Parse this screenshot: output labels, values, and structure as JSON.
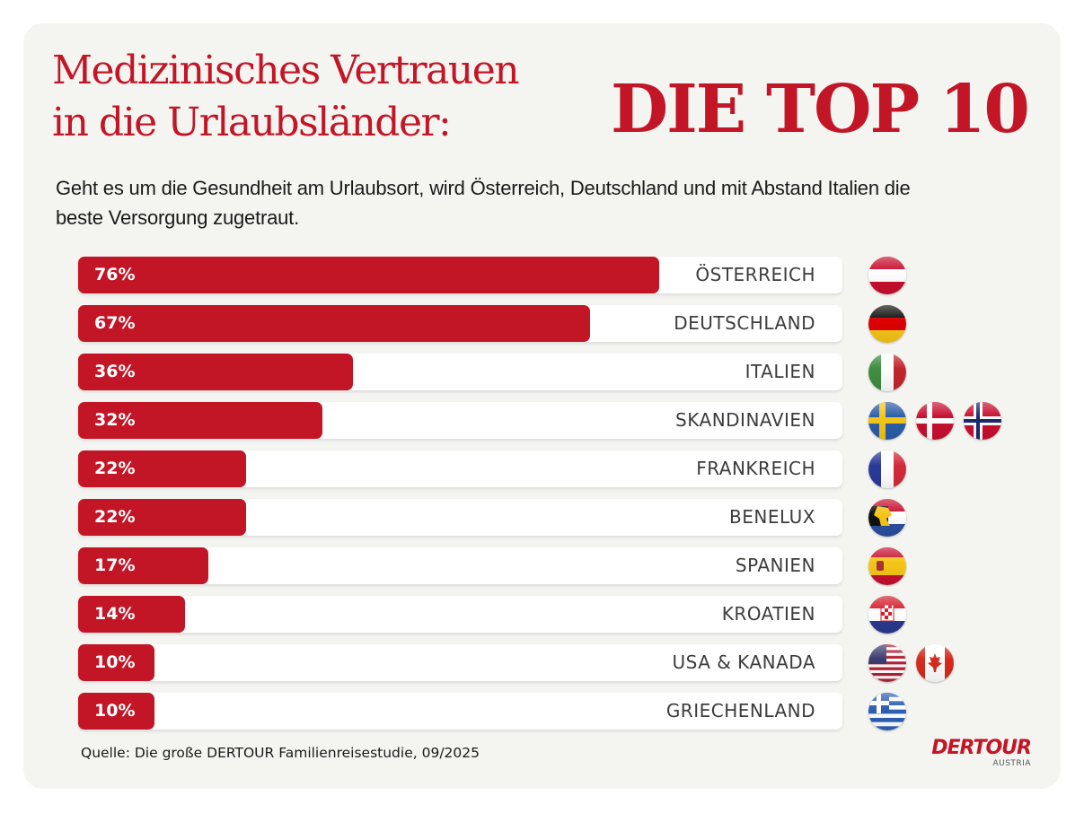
{
  "header": {
    "title": "Medizinisches Vertrauen\nin die Urlaubsländer:",
    "title_big": "DIE TOP 10",
    "subtitle": "Geht es um die Gesundheit am Urlaubsort, wird Österreich, Deutschland und mit Abstand Italien die beste Versorgung zugetraut."
  },
  "colors": {
    "accent": "#c21627",
    "background": "#f4f4f1",
    "track": "#ffffff",
    "label_text": "#3c3c3c"
  },
  "chart_data": {
    "type": "bar",
    "orientation": "horizontal",
    "title": "Medizinisches Vertrauen in die Urlaubsländer: DIE TOP 10",
    "subtitle": "Geht es um die Gesundheit am Urlaubsort, wird Österreich, Deutschland und mit Abstand Italien die beste Versorgung zugetraut.",
    "xlabel": "",
    "ylabel": "",
    "xlim": [
      0,
      100
    ],
    "grid": false,
    "unit": "%",
    "categories": [
      "ÖSTERREICH",
      "DEUTSCHLAND",
      "ITALIEN",
      "SKANDINAVIEN",
      "FRANKREICH",
      "BENELUX",
      "SPANIEN",
      "KROATIEN",
      "USA & KANADA",
      "GRIECHENLAND"
    ],
    "values": [
      76,
      67,
      36,
      32,
      22,
      22,
      17,
      14,
      10,
      10
    ],
    "value_labels": [
      "76%",
      "67%",
      "36%",
      "32%",
      "22%",
      "22%",
      "17%",
      "14%",
      "10%",
      "10%"
    ],
    "flags": [
      [
        "austria"
      ],
      [
        "germany"
      ],
      [
        "italy"
      ],
      [
        "sweden",
        "denmark",
        "norway"
      ],
      [
        "france"
      ],
      [
        "benelux"
      ],
      [
        "spain"
      ],
      [
        "croatia"
      ],
      [
        "usa",
        "canada"
      ],
      [
        "greece"
      ]
    ]
  },
  "footer": {
    "source": "Quelle: Die große DERTOUR Familienreisestudie, 09/2025",
    "logo_main": "DERTOUR",
    "logo_sub": "AUSTRIA"
  }
}
